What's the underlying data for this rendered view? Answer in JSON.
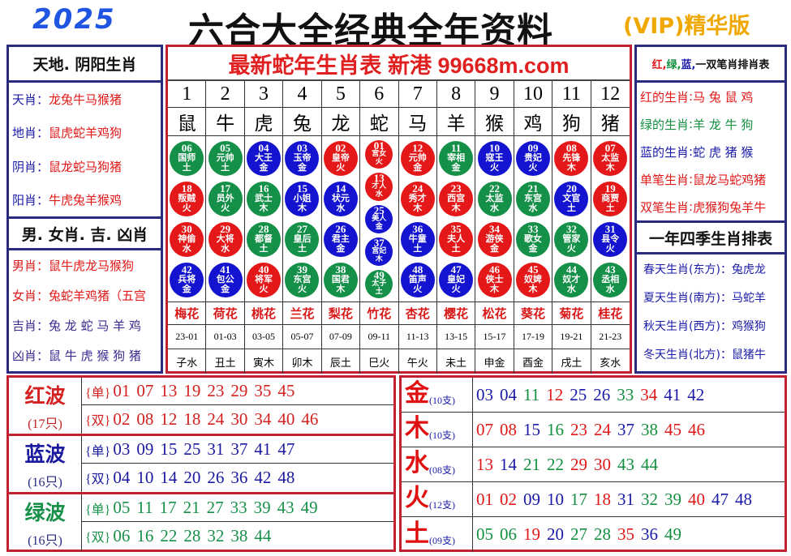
{
  "header": {
    "year": "2025",
    "title": "六合大全经典全年资料",
    "vip": "(VIP)精华版"
  },
  "left": {
    "head1": "天地. 阴阳生肖",
    "rows1": [
      {
        "label": "天肖",
        "value": "龙兔牛马猴猪"
      },
      {
        "label": "地肖",
        "value": "鼠虎蛇羊鸡狗"
      },
      {
        "label": "阴肖",
        "value": "鼠龙蛇马狗猪"
      },
      {
        "label": "阳肖",
        "value": "牛虎兔羊猴鸡"
      }
    ],
    "head2": "男. 女肖. 吉. 凶肖",
    "rows2": [
      {
        "label": "男肖",
        "value": "鼠牛虎龙马猴狗"
      },
      {
        "label": "女肖",
        "value": "兔蛇羊鸡猪（五宫"
      },
      {
        "label": "吉肖",
        "value": "兔 龙 蛇 马 羊 鸡"
      },
      {
        "label": "凶肖",
        "value": "鼠 牛 虎 猴 狗 猪"
      }
    ]
  },
  "center": {
    "site": "最新蛇年生肖表 新港 99668m.com",
    "numbers": [
      "1",
      "2",
      "3",
      "4",
      "5",
      "6",
      "7",
      "8",
      "9",
      "10",
      "11",
      "12"
    ],
    "zodiacs": [
      "鼠",
      "牛",
      "虎",
      "兔",
      "龙",
      "蛇",
      "马",
      "羊",
      "猴",
      "鸡",
      "狗",
      "猪"
    ],
    "columns": [
      [
        {
          "n": "06",
          "t": "国师",
          "e": "土"
        },
        {
          "n": "18",
          "t": "叛贼",
          "e": "火"
        },
        {
          "n": "30",
          "t": "神偷",
          "e": "水"
        },
        {
          "n": "42",
          "t": "兵将",
          "e": "金"
        }
      ],
      [
        {
          "n": "05",
          "t": "元帅",
          "e": "土"
        },
        {
          "n": "17",
          "t": "员外",
          "e": "火"
        },
        {
          "n": "29",
          "t": "大将",
          "e": "水"
        },
        {
          "n": "41",
          "t": "包公",
          "e": "金"
        }
      ],
      [
        {
          "n": "04",
          "t": "大王",
          "e": "金"
        },
        {
          "n": "16",
          "t": "武士",
          "e": "木"
        },
        {
          "n": "28",
          "t": "都督",
          "e": "土"
        },
        {
          "n": "40",
          "t": "将军",
          "e": "火"
        }
      ],
      [
        {
          "n": "03",
          "t": "玉帝",
          "e": "金"
        },
        {
          "n": "15",
          "t": "小姐",
          "e": "木"
        },
        {
          "n": "27",
          "t": "皇后",
          "e": "土"
        },
        {
          "n": "39",
          "t": "东宫",
          "e": "火"
        }
      ],
      [
        {
          "n": "02",
          "t": "皇帝",
          "e": "火"
        },
        {
          "n": "14",
          "t": "状元",
          "e": "水"
        },
        {
          "n": "26",
          "t": "君主",
          "e": "金"
        },
        {
          "n": "38",
          "t": "国君",
          "e": "木"
        }
      ],
      [
        {
          "n": "01",
          "t": "宫女",
          "e": "火"
        },
        {
          "n": "13",
          "t": "才人",
          "e": "水"
        },
        {
          "n": "25",
          "t": "美人",
          "e": "金"
        },
        {
          "n": "37",
          "t": "宫妃",
          "e": "木"
        },
        {
          "n": "49",
          "t": "太子",
          "e": "土"
        }
      ],
      [
        {
          "n": "12",
          "t": "元帅",
          "e": "金"
        },
        {
          "n": "24",
          "t": "秀才",
          "e": "木"
        },
        {
          "n": "36",
          "t": "牛童",
          "e": "土"
        },
        {
          "n": "48",
          "t": "笛声",
          "e": "火"
        }
      ],
      [
        {
          "n": "11",
          "t": "宰相",
          "e": "金"
        },
        {
          "n": "23",
          "t": "西宫",
          "e": "木"
        },
        {
          "n": "35",
          "t": "夫人",
          "e": "土"
        },
        {
          "n": "47",
          "t": "皇妃",
          "e": "火"
        }
      ],
      [
        {
          "n": "10",
          "t": "寇王",
          "e": "火"
        },
        {
          "n": "22",
          "t": "太监",
          "e": "水"
        },
        {
          "n": "34",
          "t": "游侠",
          "e": "金"
        },
        {
          "n": "46",
          "t": "侠士",
          "e": "木"
        }
      ],
      [
        {
          "n": "09",
          "t": "贵妃",
          "e": "火"
        },
        {
          "n": "21",
          "t": "东宫",
          "e": "水"
        },
        {
          "n": "33",
          "t": "歌女",
          "e": "金"
        },
        {
          "n": "45",
          "t": "奴婢",
          "e": "木"
        }
      ],
      [
        {
          "n": "08",
          "t": "先锋",
          "e": "木"
        },
        {
          "n": "20",
          "t": "文官",
          "e": "土"
        },
        {
          "n": "32",
          "t": "管家",
          "e": "火"
        },
        {
          "n": "44",
          "t": "奴才",
          "e": "水"
        }
      ],
      [
        {
          "n": "07",
          "t": "太监",
          "e": "木"
        },
        {
          "n": "19",
          "t": "商贾",
          "e": "土"
        },
        {
          "n": "31",
          "t": "县令",
          "e": "火"
        },
        {
          "n": "43",
          "t": "丞相",
          "e": "水"
        }
      ]
    ],
    "flowers": [
      "梅花",
      "荷花",
      "桃花",
      "兰花",
      "梨花",
      "竹花",
      "杏花",
      "樱花",
      "松花",
      "葵花",
      "菊花",
      "桂花"
    ],
    "times": [
      "23-01",
      "01-03",
      "03-05",
      "05-07",
      "07-09",
      "09-11",
      "11-13",
      "13-15",
      "15-17",
      "17-19",
      "19-21",
      "21-23"
    ],
    "branches": [
      "子水",
      "丑土",
      "寅木",
      "卯木",
      "辰土",
      "巳火",
      "午火",
      "未土",
      "申金",
      "酉金",
      "戌土",
      "亥水"
    ]
  },
  "right": {
    "head1": {
      "red": "红,",
      "green": "绿,",
      "blue": "蓝,",
      "rest": "一双笔肖排肖表"
    },
    "rows1": [
      {
        "label": "红的生肖",
        "value": "马 兔 鼠 鸡",
        "color": "red"
      },
      {
        "label": "绿的生肖",
        "value": "羊 龙 牛 狗",
        "color": "green"
      },
      {
        "label": "蓝的生肖",
        "value": "蛇 虎 猪 猴",
        "color": "blue"
      },
      {
        "label": "单笔生肖",
        "value": "鼠龙马蛇鸡猪",
        "color": "red"
      },
      {
        "label": "双笔生肖",
        "value": "虎猴狗兔羊牛",
        "color": "red"
      }
    ],
    "head2": "一年四季生肖排表",
    "rows2": [
      {
        "label": "春天生肖(东方)",
        "value": "兔虎龙"
      },
      {
        "label": "夏天生肖(南方)",
        "value": "马蛇羊"
      },
      {
        "label": "秋天生肖(西方)",
        "value": "鸡猴狗"
      },
      {
        "label": "冬天生肖(北方)",
        "value": "鼠猪牛"
      }
    ]
  },
  "waves": [
    {
      "name": "红波",
      "count": "(17只)",
      "color": "#d42020",
      "odd_label": "{单}",
      "odd": [
        "01",
        "07",
        "13",
        "19",
        "23",
        "29",
        "35",
        "45"
      ],
      "even_label": "{双}",
      "even": [
        "02",
        "08",
        "12",
        "18",
        "24",
        "30",
        "34",
        "40",
        "46"
      ]
    },
    {
      "name": "蓝波",
      "count": "(16只)",
      "color": "#1a1aa0",
      "odd_label": "{单}",
      "odd": [
        "03",
        "09",
        "15",
        "25",
        "31",
        "37",
        "41",
        "47"
      ],
      "even_label": "{双}",
      "even": [
        "04",
        "10",
        "14",
        "20",
        "26",
        "36",
        "42",
        "48"
      ]
    },
    {
      "name": "绿波",
      "count": "(16只)",
      "color": "#17904a",
      "odd_label": "{单}",
      "odd": [
        "05",
        "11",
        "17",
        "21",
        "27",
        "33",
        "39",
        "43",
        "49"
      ],
      "even_label": "{双}",
      "even": [
        "06",
        "16",
        "22",
        "28",
        "32",
        "38",
        "44"
      ]
    }
  ],
  "elements": [
    {
      "name": "金",
      "count": "(10支)",
      "numbers": [
        "03",
        "04",
        "11",
        "12",
        "25",
        "26",
        "33",
        "34",
        "41",
        "42"
      ]
    },
    {
      "name": "木",
      "count": "(10支)",
      "numbers": [
        "07",
        "08",
        "15",
        "16",
        "23",
        "24",
        "37",
        "38",
        "45",
        "46"
      ]
    },
    {
      "name": "水",
      "count": "(08支)",
      "numbers": [
        "13",
        "14",
        "21",
        "22",
        "29",
        "30",
        "43",
        "44"
      ]
    },
    {
      "name": "火",
      "count": "(12支)",
      "numbers": [
        "01",
        "02",
        "09",
        "10",
        "17",
        "18",
        "31",
        "32",
        "39",
        "40",
        "47",
        "48"
      ]
    },
    {
      "name": "土",
      "count": "(09支)",
      "numbers": [
        "05",
        "06",
        "19",
        "20",
        "27",
        "28",
        "35",
        "36",
        "49"
      ]
    }
  ],
  "colors": {
    "red_ball": "#e41818",
    "blue_ball": "#1414d0",
    "green_ball": "#149048"
  }
}
